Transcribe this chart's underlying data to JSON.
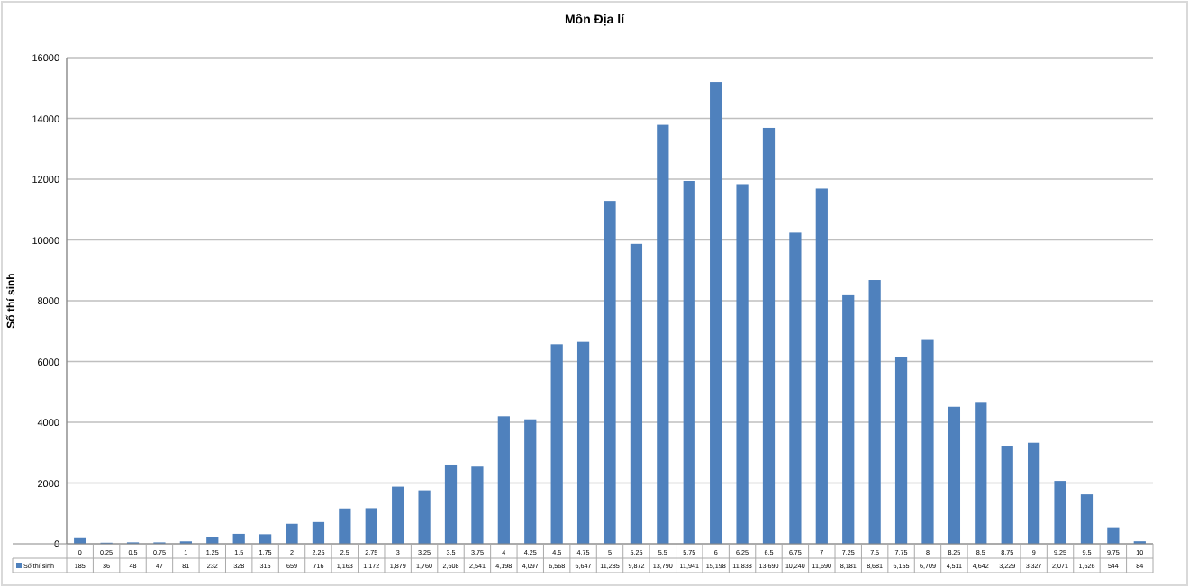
{
  "chart_data": {
    "type": "bar",
    "title": "Môn Địa lí",
    "ylabel": "Số thí sinh",
    "categories": [
      "0",
      "0.25",
      "0.5",
      "0.75",
      "1",
      "1.25",
      "1.5",
      "1.75",
      "2",
      "2.25",
      "2.5",
      "2.75",
      "3",
      "3.25",
      "3.5",
      "3.75",
      "4",
      "4.25",
      "4.5",
      "4.75",
      "5",
      "5.25",
      "5.5",
      "5.75",
      "6",
      "6.25",
      "6.5",
      "6.75",
      "7",
      "7.25",
      "7.5",
      "7.75",
      "8",
      "8.25",
      "8.5",
      "8.75",
      "9",
      "9.25",
      "9.5",
      "9.75",
      "10"
    ],
    "series": [
      {
        "name": "Số thí sinh",
        "color": "#4f81bd",
        "values": [
          185,
          36,
          48,
          47,
          81,
          232,
          328,
          315,
          659,
          716,
          1163,
          1172,
          1879,
          1760,
          2608,
          2541,
          4198,
          4097,
          6568,
          6647,
          11285,
          9872,
          13790,
          11941,
          15198,
          11838,
          13690,
          10240,
          11690,
          8181,
          8681,
          6155,
          6709,
          4511,
          4642,
          3229,
          3327,
          2071,
          1626,
          544,
          84
        ],
        "value_labels": [
          "185",
          "36",
          "48",
          "47",
          "81",
          "232",
          "328",
          "315",
          "659",
          "716",
          "1,163",
          "1,172",
          "1,879",
          "1,760",
          "2,608",
          "2,541",
          "4,198",
          "4,097",
          "6,568",
          "6,647",
          "11,285",
          "9,872",
          "13,790",
          "11,941",
          "15,198",
          "11,838",
          "13,690",
          "10,240",
          "11,690",
          "8,181",
          "8,681",
          "6,155",
          "6,709",
          "4,511",
          "4,642",
          "3,229",
          "3,327",
          "2,071",
          "1,626",
          "544",
          "84"
        ]
      }
    ],
    "ylim": [
      0,
      16000
    ],
    "yticks": [
      0,
      2000,
      4000,
      6000,
      8000,
      10000,
      12000,
      14000,
      16000
    ],
    "grid": "y",
    "legend": "bottom"
  }
}
